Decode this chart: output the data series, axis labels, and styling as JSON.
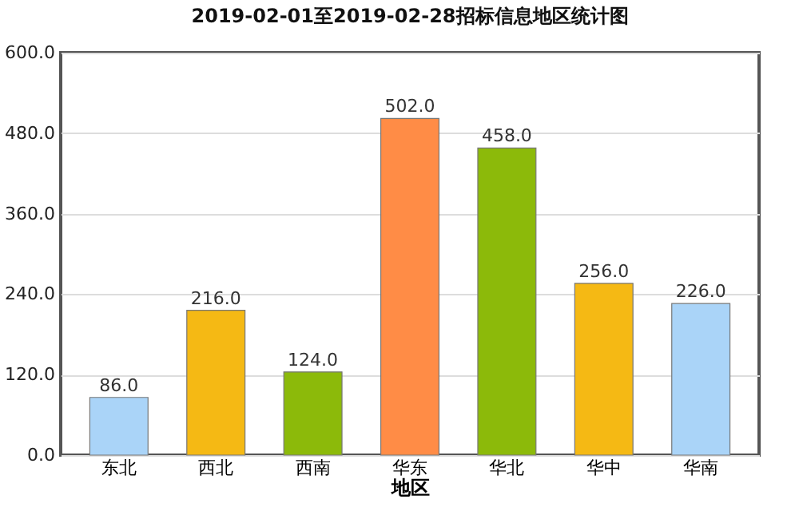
{
  "chart_data": {
    "type": "bar",
    "title": "2019-02-01至2019-02-28招标信息地区统计图",
    "xlabel": "地区",
    "categories": [
      "东北",
      "西北",
      "西南",
      "华东",
      "华北",
      "华中",
      "华南"
    ],
    "values": [
      86,
      216,
      124,
      502,
      458,
      256,
      226
    ],
    "colors": [
      "#aad4f8",
      "#f5b914",
      "#8cba0a",
      "#ff8c46",
      "#8cba0a",
      "#f5b914",
      "#aad4f8"
    ],
    "value_labels": [
      "86.0",
      "216.0",
      "124.0",
      "502.0",
      "458.0",
      "256.0",
      "226.0"
    ],
    "ylim": [
      0,
      600
    ],
    "yticks": [
      {
        "value": 0,
        "label": "0.0"
      },
      {
        "value": 120,
        "label": "120.0"
      },
      {
        "value": 240,
        "label": "240.0"
      },
      {
        "value": 360,
        "label": "360.0"
      },
      {
        "value": 480,
        "label": "480.0"
      },
      {
        "value": 600,
        "label": "600.0"
      }
    ],
    "grid": "y"
  }
}
